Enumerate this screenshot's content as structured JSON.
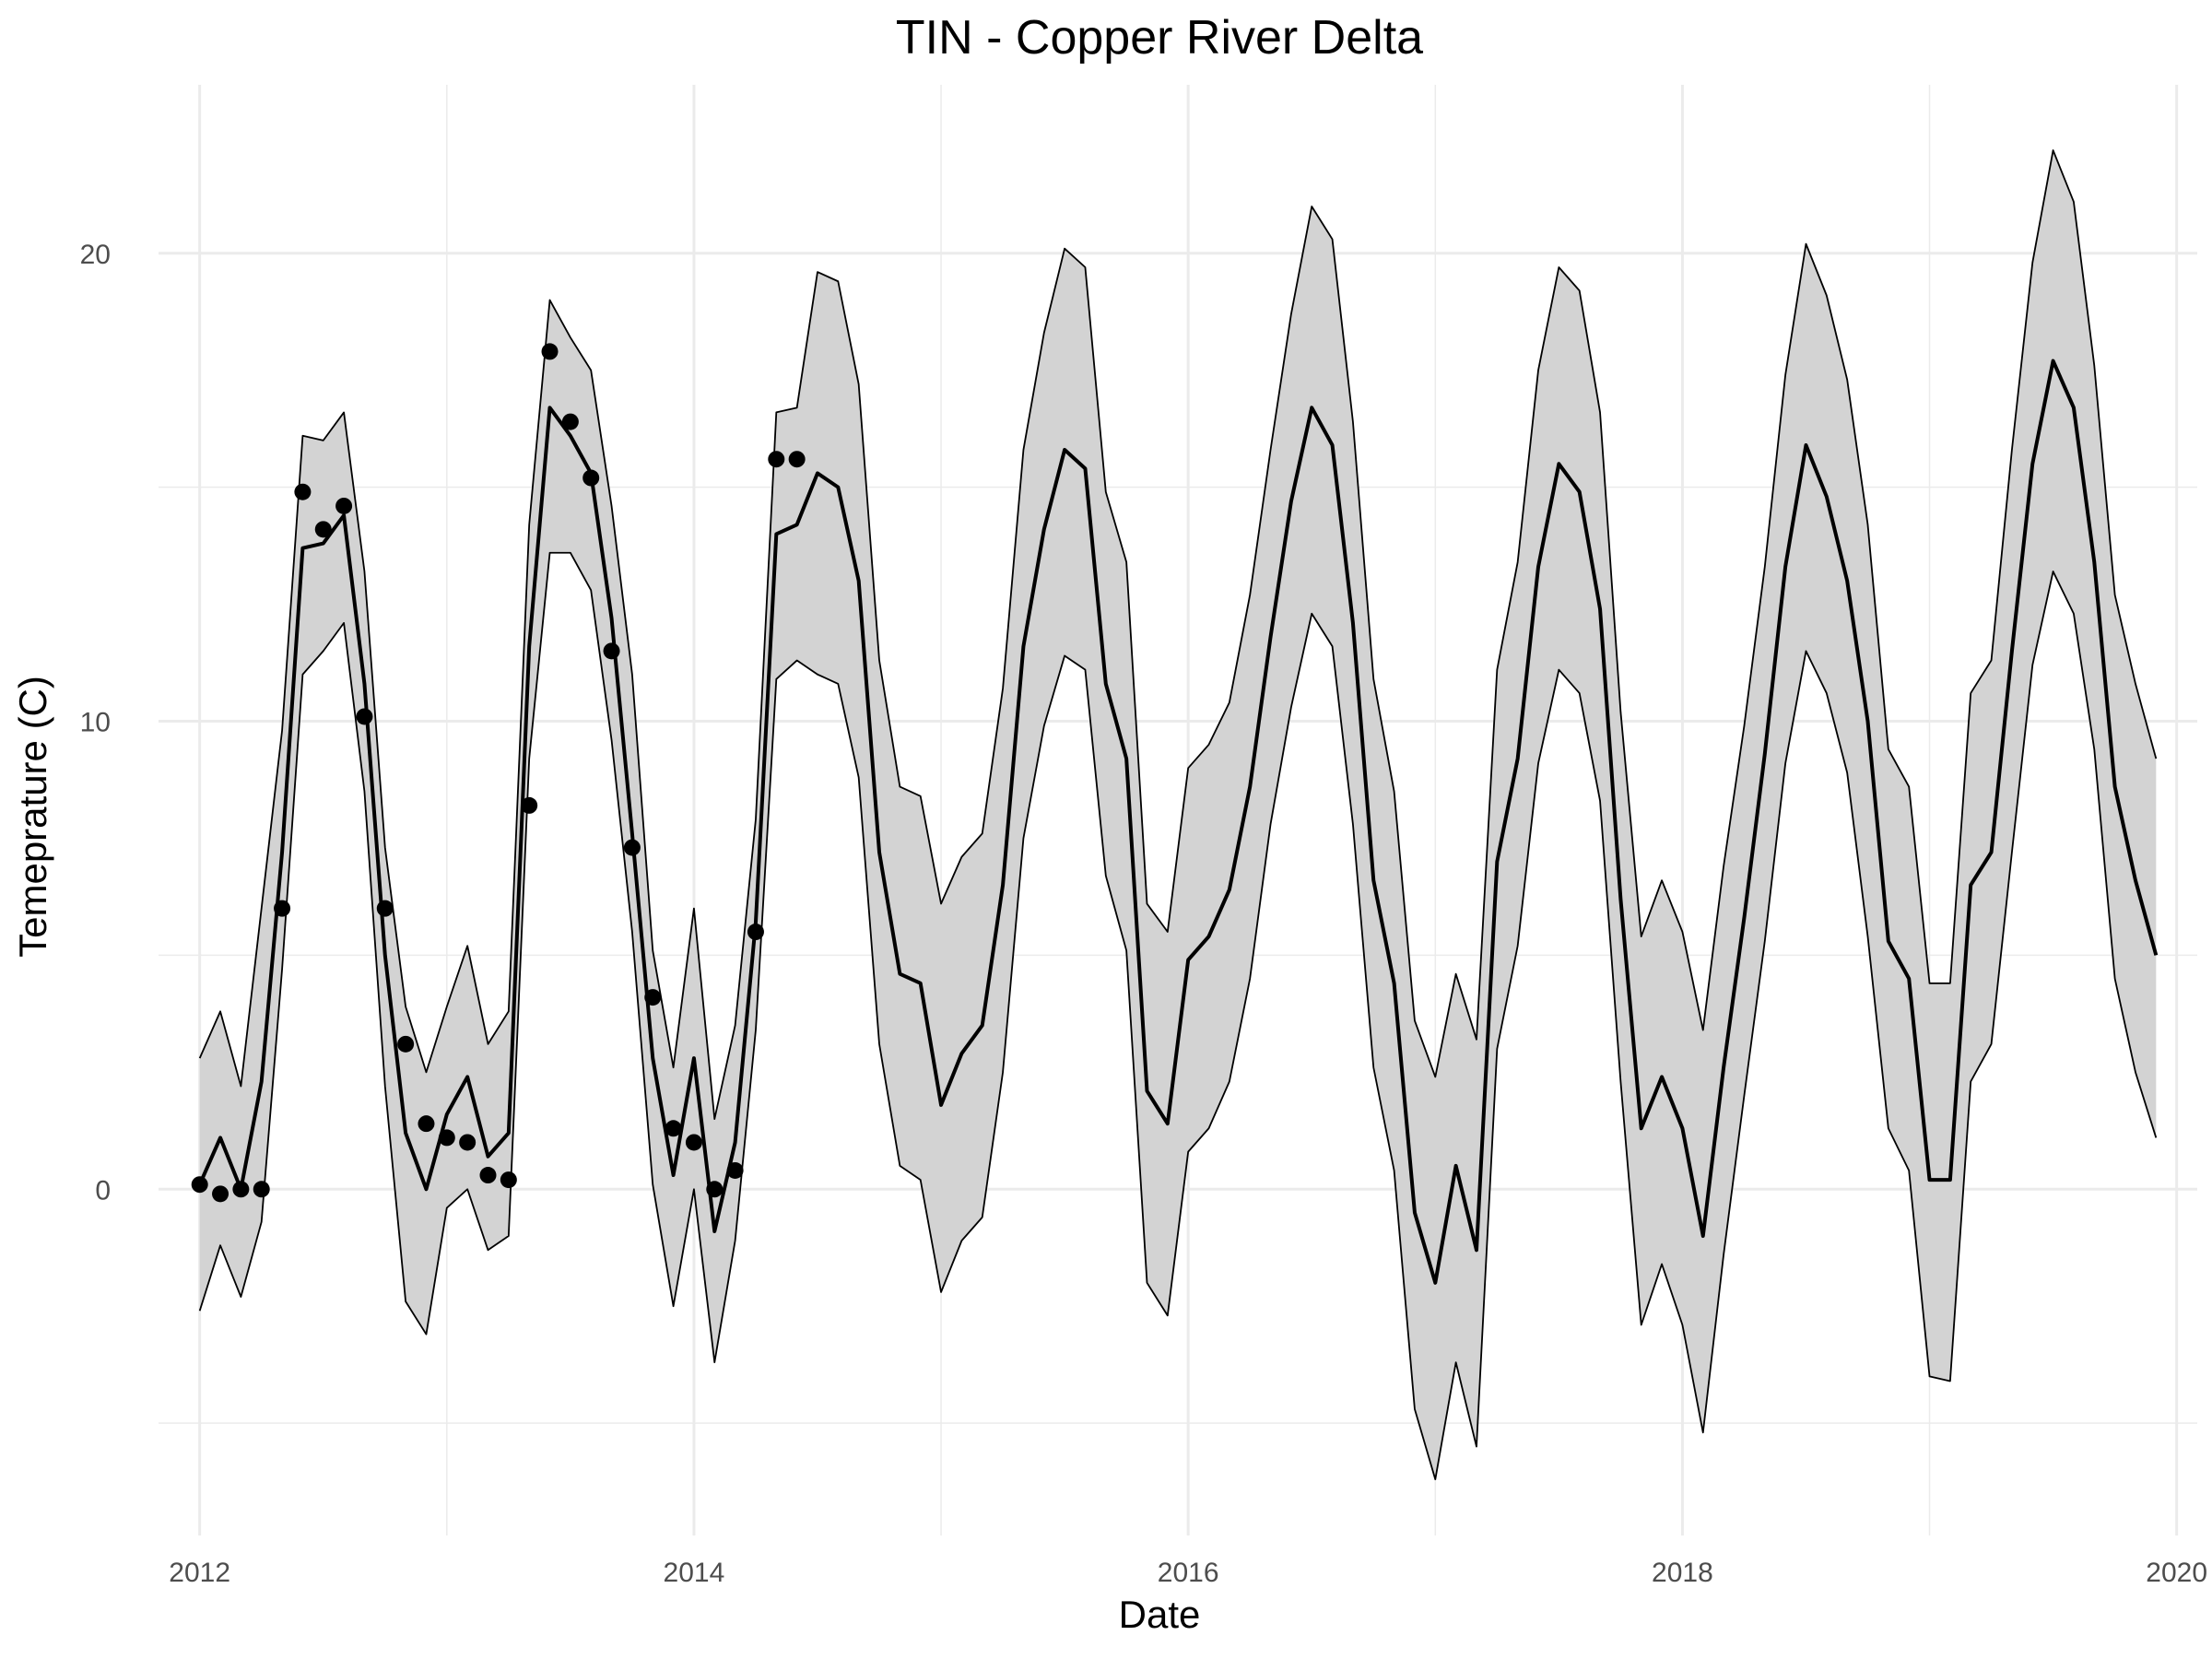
{
  "chart_data": {
    "type": "line",
    "title": "TIN - Copper River Delta",
    "xlabel": "Date",
    "ylabel": "Temeprature (C)",
    "x_ticks": [
      "2012",
      "2014",
      "2016",
      "2018",
      "2020"
    ],
    "y_ticks": [
      0,
      10,
      20
    ],
    "xlim": [
      "2011-11-01",
      "2020-02-01"
    ],
    "ylim": [
      -7.4,
      23.6
    ],
    "grid": true,
    "legend": "none",
    "colors": {
      "band": "#d3d3d3",
      "line": "#000000",
      "grid": "#ebebeb",
      "points": "#000000"
    },
    "series": [
      {
        "kind": "ribbon",
        "x": [
          "2012-01",
          "2012-02",
          "2012-03",
          "2012-04",
          "2012-05",
          "2012-06",
          "2012-07",
          "2012-08",
          "2012-09",
          "2012-10",
          "2012-11",
          "2012-12",
          "2013-01",
          "2013-02",
          "2013-03",
          "2013-04",
          "2013-05",
          "2013-06",
          "2013-07",
          "2013-08",
          "2013-09",
          "2013-10",
          "2013-11",
          "2013-12",
          "2014-01",
          "2014-02",
          "2014-03",
          "2014-04",
          "2014-05",
          "2014-06",
          "2014-07",
          "2014-08",
          "2014-09",
          "2014-10",
          "2014-11",
          "2014-12",
          "2015-01",
          "2015-02",
          "2015-03",
          "2015-04",
          "2015-05",
          "2015-06",
          "2015-07",
          "2015-08",
          "2015-09",
          "2015-10",
          "2015-11",
          "2015-12",
          "2016-01",
          "2016-02",
          "2016-03",
          "2016-04",
          "2016-05",
          "2016-06",
          "2016-07",
          "2016-08",
          "2016-09",
          "2016-10",
          "2016-11",
          "2016-12",
          "2017-01",
          "2017-02",
          "2017-03",
          "2017-04",
          "2017-05",
          "2017-06",
          "2017-07",
          "2017-08",
          "2017-09",
          "2017-10",
          "2017-11",
          "2017-12",
          "2018-01",
          "2018-02",
          "2018-03",
          "2018-04",
          "2018-05",
          "2018-06",
          "2018-07",
          "2018-08",
          "2018-09",
          "2018-10",
          "2018-11",
          "2018-12",
          "2019-01",
          "2019-02",
          "2019-03",
          "2019-04",
          "2019-05",
          "2019-06",
          "2019-07",
          "2019-08",
          "2019-09",
          "2019-10",
          "2019-11",
          "2019-12"
        ],
        "lower": [
          -2.6,
          -1.2,
          -2.3,
          -0.7,
          4.7,
          11.0,
          11.5,
          12.1,
          8.5,
          2.2,
          -2.4,
          -3.1,
          -0.4,
          0.0,
          -1.3,
          -1.0,
          9.2,
          13.6,
          13.6,
          12.8,
          9.6,
          5.5,
          0.1,
          -2.5,
          0.0,
          -3.7,
          -1.1,
          3.4,
          10.9,
          11.3,
          11.0,
          10.8,
          8.8,
          3.1,
          0.5,
          0.2,
          -2.2,
          -1.1,
          -0.6,
          2.5,
          7.5,
          9.9,
          11.4,
          11.1,
          6.7,
          5.1,
          -2.0,
          -2.7,
          0.8,
          1.3,
          2.3,
          4.5,
          7.8,
          10.3,
          12.3,
          11.6,
          7.8,
          2.6,
          0.4,
          -4.7,
          -6.2,
          -3.7,
          -5.5,
          3.0,
          5.2,
          9.1,
          11.1,
          10.6,
          8.3,
          2.3,
          -2.9,
          -1.6,
          -2.9,
          -5.2,
          -1.4,
          2.0,
          5.3,
          9.1,
          11.5,
          10.6,
          8.9,
          5.4,
          1.3,
          0.4,
          -4.0,
          -4.1,
          2.3,
          3.1,
          7.2,
          11.2,
          13.2,
          12.3,
          9.4,
          4.5,
          2.5,
          1.1
        ]
      },
      {
        "kind": "ribbon",
        "x": [
          "2012-01",
          "2012-02",
          "2012-03",
          "2012-04",
          "2012-05",
          "2012-06",
          "2012-07",
          "2012-08",
          "2012-09",
          "2012-10",
          "2012-11",
          "2012-12",
          "2013-01",
          "2013-02",
          "2013-03",
          "2013-04",
          "2013-05",
          "2013-06",
          "2013-07",
          "2013-08",
          "2013-09",
          "2013-10",
          "2013-11",
          "2013-12",
          "2014-01",
          "2014-02",
          "2014-03",
          "2014-04",
          "2014-05",
          "2014-06",
          "2014-07",
          "2014-08",
          "2014-09",
          "2014-10",
          "2014-11",
          "2014-12",
          "2015-01",
          "2015-02",
          "2015-03",
          "2015-04",
          "2015-05",
          "2015-06",
          "2015-07",
          "2015-08",
          "2015-09",
          "2015-10",
          "2015-11",
          "2015-12",
          "2016-01",
          "2016-02",
          "2016-03",
          "2016-04",
          "2016-05",
          "2016-06",
          "2016-07",
          "2016-08",
          "2016-09",
          "2016-10",
          "2016-11",
          "2016-12",
          "2017-01",
          "2017-02",
          "2017-03",
          "2017-04",
          "2017-05",
          "2017-06",
          "2017-07",
          "2017-08",
          "2017-09",
          "2017-10",
          "2017-11",
          "2017-12",
          "2018-01",
          "2018-02",
          "2018-03",
          "2018-04",
          "2018-05",
          "2018-06",
          "2018-07",
          "2018-08",
          "2018-09",
          "2018-10",
          "2018-11",
          "2018-12",
          "2019-01",
          "2019-02",
          "2019-03",
          "2019-04",
          "2019-05",
          "2019-06",
          "2019-07",
          "2019-08",
          "2019-09",
          "2019-10",
          "2019-11",
          "2019-12"
        ],
        "upper": [
          2.8,
          3.8,
          2.2,
          6.0,
          9.8,
          16.1,
          16.0,
          16.6,
          13.2,
          7.3,
          3.9,
          2.5,
          3.9,
          5.2,
          3.1,
          3.8,
          14.2,
          19.0,
          18.2,
          17.5,
          14.6,
          11.0,
          5.1,
          2.6,
          6.0,
          1.5,
          3.5,
          7.9,
          16.6,
          16.7,
          19.6,
          19.4,
          17.2,
          11.3,
          8.6,
          8.4,
          6.1,
          7.1,
          7.6,
          10.7,
          15.8,
          18.3,
          20.1,
          19.7,
          14.9,
          13.4,
          6.1,
          5.5,
          9.0,
          9.5,
          10.4,
          12.7,
          15.8,
          18.7,
          21.0,
          20.3,
          16.4,
          10.9,
          8.5,
          3.6,
          2.4,
          4.6,
          3.2,
          11.1,
          13.4,
          17.5,
          19.7,
          19.2,
          16.6,
          10.2,
          5.4,
          6.6,
          5.5,
          3.4,
          6.9,
          9.9,
          13.3,
          17.4,
          20.2,
          19.1,
          17.3,
          14.2,
          9.4,
          8.6,
          4.4,
          4.4,
          10.6,
          11.3,
          15.8,
          19.8,
          22.2,
          21.1,
          17.6,
          12.7,
          10.8,
          9.2
        ]
      },
      {
        "kind": "line",
        "x": [
          "2012-01",
          "2012-02",
          "2012-03",
          "2012-04",
          "2012-05",
          "2012-06",
          "2012-07",
          "2012-08",
          "2012-09",
          "2012-10",
          "2012-11",
          "2012-12",
          "2013-01",
          "2013-02",
          "2013-03",
          "2013-04",
          "2013-05",
          "2013-06",
          "2013-07",
          "2013-08",
          "2013-09",
          "2013-10",
          "2013-11",
          "2013-12",
          "2014-01",
          "2014-02",
          "2014-03",
          "2014-04",
          "2014-05",
          "2014-06",
          "2014-07",
          "2014-08",
          "2014-09",
          "2014-10",
          "2014-11",
          "2014-12",
          "2015-01",
          "2015-02",
          "2015-03",
          "2015-04",
          "2015-05",
          "2015-06",
          "2015-07",
          "2015-08",
          "2015-09",
          "2015-10",
          "2015-11",
          "2015-12",
          "2016-01",
          "2016-02",
          "2016-03",
          "2016-04",
          "2016-05",
          "2016-06",
          "2016-07",
          "2016-08",
          "2016-09",
          "2016-10",
          "2016-11",
          "2016-12",
          "2017-01",
          "2017-02",
          "2017-03",
          "2017-04",
          "2017-05",
          "2017-06",
          "2017-07",
          "2017-08",
          "2017-09",
          "2017-10",
          "2017-11",
          "2017-12",
          "2018-01",
          "2018-02",
          "2018-03",
          "2018-04",
          "2018-05",
          "2018-06",
          "2018-07",
          "2018-08",
          "2018-09",
          "2018-10",
          "2018-11",
          "2018-12",
          "2019-01",
          "2019-02",
          "2019-03",
          "2019-04",
          "2019-05",
          "2019-06",
          "2019-07",
          "2019-08",
          "2019-09",
          "2019-10",
          "2019-11",
          "2019-12"
        ],
        "values": [
          0.1,
          1.1,
          0.0,
          2.3,
          7.2,
          13.7,
          13.8,
          14.4,
          10.8,
          5.0,
          1.2,
          0.0,
          1.6,
          2.4,
          0.7,
          1.2,
          11.6,
          16.7,
          16.1,
          15.3,
          12.2,
          7.6,
          2.8,
          0.3,
          2.8,
          -0.9,
          1.0,
          5.7,
          14.0,
          14.2,
          15.3,
          15.0,
          13.0,
          7.2,
          4.6,
          4.4,
          1.8,
          2.9,
          3.5,
          6.5,
          11.6,
          14.1,
          15.8,
          15.4,
          10.8,
          9.2,
          2.1,
          1.4,
          4.9,
          5.4,
          6.4,
          8.6,
          11.8,
          14.7,
          16.7,
          15.9,
          12.1,
          6.6,
          4.4,
          -0.5,
          -2.0,
          0.5,
          -1.3,
          7.0,
          9.2,
          13.3,
          15.5,
          14.9,
          12.4,
          6.2,
          1.3,
          2.4,
          1.3,
          -1.0,
          2.6,
          5.8,
          9.3,
          13.3,
          15.9,
          14.8,
          13.0,
          10.0,
          5.3,
          4.5,
          0.2,
          0.2,
          6.5,
          7.2,
          11.5,
          15.5,
          17.7,
          16.7,
          13.4,
          8.6,
          6.6,
          5.0
        ]
      },
      {
        "kind": "points",
        "x": [
          "2012-01",
          "2012-02",
          "2012-03",
          "2012-04",
          "2012-05",
          "2012-06",
          "2012-07",
          "2012-08",
          "2012-09",
          "2012-10",
          "2012-11",
          "2012-12",
          "2013-01",
          "2013-02",
          "2013-03",
          "2013-04",
          "2013-05",
          "2013-06",
          "2013-07",
          "2013-08",
          "2013-09",
          "2013-10",
          "2013-11",
          "2013-12",
          "2014-01",
          "2014-02",
          "2014-03",
          "2014-04",
          "2014-05",
          "2014-06"
        ],
        "values": [
          0.1,
          -0.1,
          0.0,
          0.0,
          6.0,
          14.9,
          14.1,
          14.6,
          10.1,
          6.0,
          3.1,
          1.4,
          1.1,
          1.0,
          0.3,
          0.2,
          8.2,
          17.9,
          16.4,
          15.2,
          11.5,
          7.3,
          4.1,
          1.3,
          1.0,
          0.0,
          0.4,
          5.5,
          15.6,
          15.6
        ]
      }
    ]
  }
}
